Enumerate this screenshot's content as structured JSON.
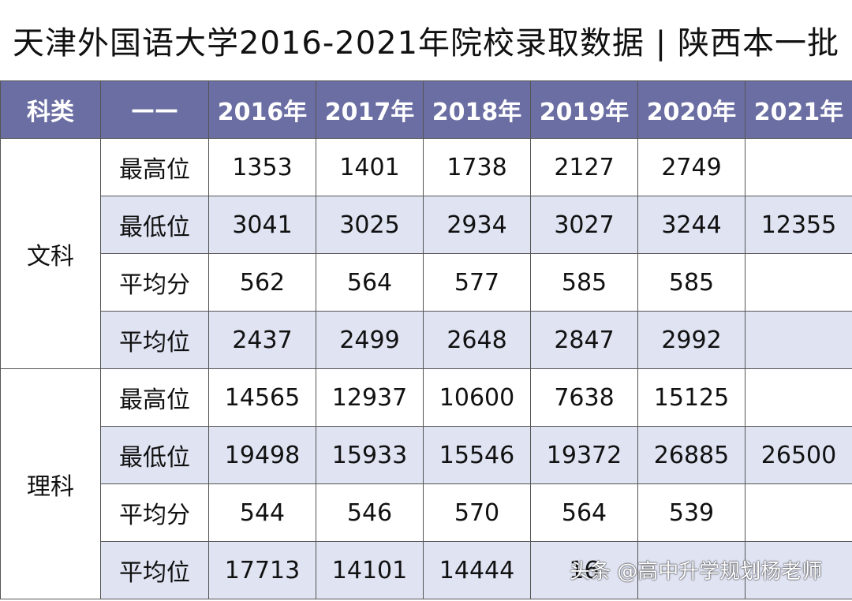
{
  "title": "天津外国语大学2016-2021年院校录取数据 | 陕西本一批",
  "header": {
    "subject_col": "科类",
    "metric_col": "——",
    "years": [
      "2016年",
      "2017年",
      "2018年",
      "2019年",
      "2020年",
      "2021年"
    ]
  },
  "sections": [
    {
      "subject": "文科",
      "rows": [
        {
          "metric": "最高位",
          "values": [
            "1353",
            "1401",
            "1738",
            "2127",
            "2749",
            ""
          ]
        },
        {
          "metric": "最低位",
          "values": [
            "3041",
            "3025",
            "2934",
            "3027",
            "3244",
            "12355"
          ]
        },
        {
          "metric": "平均分",
          "values": [
            "562",
            "564",
            "577",
            "585",
            "585",
            ""
          ]
        },
        {
          "metric": "平均位",
          "values": [
            "2437",
            "2499",
            "2648",
            "2847",
            "2992",
            ""
          ]
        }
      ]
    },
    {
      "subject": "理科",
      "rows": [
        {
          "metric": "最高位",
          "values": [
            "14565",
            "12937",
            "10600",
            "7638",
            "15125",
            ""
          ]
        },
        {
          "metric": "最低位",
          "values": [
            "19498",
            "15933",
            "15546",
            "19372",
            "26885",
            "26500"
          ]
        },
        {
          "metric": "平均分",
          "values": [
            "544",
            "546",
            "570",
            "564",
            "539",
            ""
          ]
        },
        {
          "metric": "平均位",
          "values": [
            "17713",
            "14101",
            "14444",
            "16",
            "",
            ""
          ]
        }
      ]
    }
  ],
  "watermark": "头条 @高中升学规划杨老师",
  "colors": {
    "header_bg": "#6b6ea3",
    "shade_row": "#dfe3f2"
  }
}
